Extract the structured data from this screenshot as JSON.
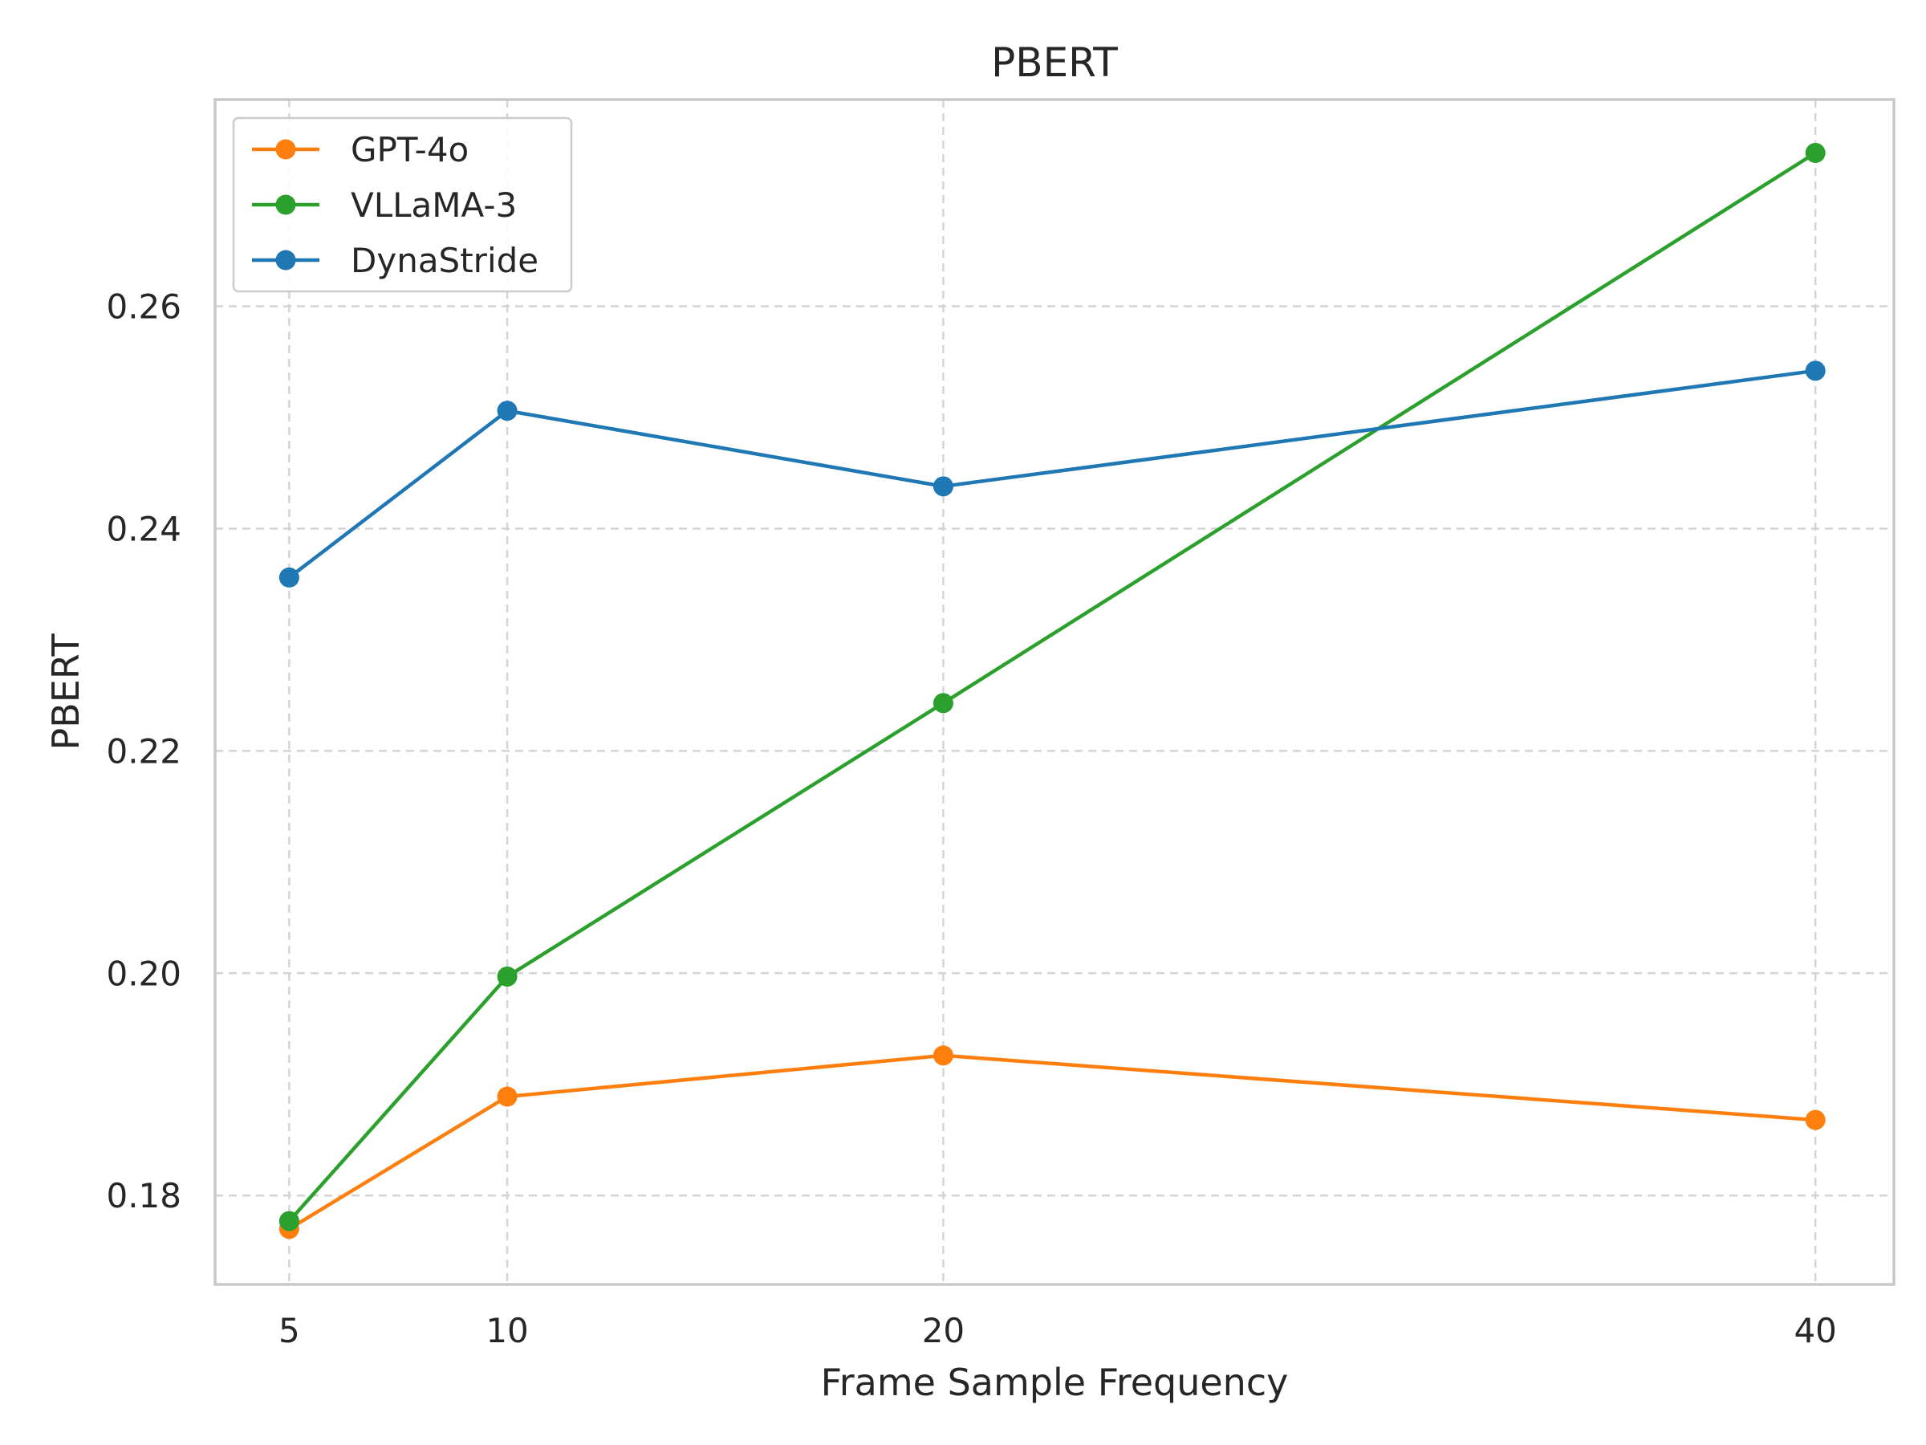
{
  "chart_data": {
    "type": "line",
    "title": "PBERT",
    "xlabel": "Frame Sample Frequency",
    "ylabel": "PBERT",
    "x": [
      5,
      10,
      20,
      40
    ],
    "x_tick_labels": [
      "5",
      "10",
      "20",
      "40"
    ],
    "y_ticks": [
      0.18,
      0.2,
      0.22,
      0.24,
      0.26
    ],
    "y_tick_labels": [
      "0.18",
      "0.20",
      "0.22",
      "0.24",
      "0.26"
    ],
    "xlim": [
      3.3,
      41.8
    ],
    "ylim": [
      0.172,
      0.2786
    ],
    "grid": true,
    "legend_position": "top-left",
    "series": [
      {
        "name": "GPT-4o",
        "color": "#ff7f0e",
        "values": [
          0.177,
          0.1889,
          0.1926,
          0.1868
        ]
      },
      {
        "name": "VLLaMA-3",
        "color": "#2ca02c",
        "values": [
          0.1777,
          0.1997,
          0.2243,
          0.2738
        ]
      },
      {
        "name": "DynaStride",
        "color": "#1f77b4",
        "values": [
          0.2356,
          0.2506,
          0.2438,
          0.2542
        ]
      }
    ]
  }
}
